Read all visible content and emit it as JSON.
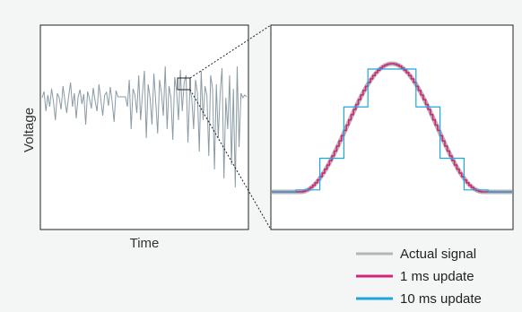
{
  "chart_data": [
    {
      "type": "line",
      "title": "",
      "xlabel": "Time",
      "ylabel": "Voltage",
      "grid": false,
      "ylim": [
        -1,
        1
      ],
      "series": [
        {
          "name": "",
          "color": "#8a9ba5",
          "y": [
            0.05,
            0.12,
            -0.1,
            0.08,
            -0.05,
            0.15,
            0.0,
            -0.2,
            0.1,
            0.05,
            -0.08,
            0.18,
            0.02,
            -0.12,
            0.07,
            0.22,
            -0.05,
            0.1,
            -0.18,
            0.06,
            0.14,
            -0.02,
            0.09,
            -0.25,
            0.12,
            0.04,
            -0.07,
            0.16,
            0.01,
            -0.1,
            0.2,
            0.03,
            -0.15,
            0.08,
            0.11,
            -0.04,
            0.17,
            0.0,
            -0.22,
            0.13,
            0.06,
            0.06,
            0.06,
            0.06,
            0.06,
            -0.05,
            0.25,
            -0.3,
            0.15,
            0.08,
            -0.12,
            0.3,
            -0.2,
            0.1,
            0.35,
            -0.4,
            0.2,
            0.05,
            -0.25,
            0.32,
            0.0,
            -0.35,
            0.25,
            0.1,
            -0.15,
            0.4,
            -0.3,
            0.18,
            0.05,
            -0.42,
            0.28,
            0.12,
            -0.2,
            0.36,
            -0.1,
            0.22,
            0.3,
            -0.45,
            0.15,
            0.05,
            -0.3,
            0.25,
            0.1,
            -0.55,
            0.35,
            -0.2,
            0.18,
            0.08,
            -0.6,
            0.3,
            0.15,
            -0.75,
            0.2,
            -0.4,
            0.1,
            0.38,
            -0.85,
            0.05,
            -0.3,
            0.3,
            -0.7,
            0.15,
            -0.95,
            0.4,
            -0.5,
            0.1,
            0.05,
            0.08,
            0.06
          ]
        }
      ],
      "zoom_box_index": 66
    },
    {
      "type": "line",
      "title": "",
      "xlabel": "",
      "ylabel": "",
      "grid": false,
      "xlim": [
        0,
        1
      ],
      "ylim": [
        0,
        1
      ],
      "series": [
        {
          "name": "Actual signal",
          "color": "#b5b5b5",
          "kind": "smooth",
          "samples": 200
        },
        {
          "name": "1 ms update",
          "color": "#d4237a",
          "kind": "step",
          "steps": 100
        },
        {
          "name": "10 ms update",
          "color": "#1ea5e0",
          "kind": "step",
          "steps": 10
        }
      ],
      "signal": {
        "baseline": 0.0,
        "peak": 1.0,
        "rise_start": 0.12,
        "rise_end": 0.5,
        "fall_end": 0.88
      }
    }
  ],
  "legend": {
    "placement": "bottom-right",
    "items": [
      {
        "label": "Actual signal",
        "color": "#b5b5b5"
      },
      {
        "label": "1 ms update",
        "color": "#d4237a"
      },
      {
        "label": "10 ms update",
        "color": "#1ea5e0"
      }
    ]
  }
}
